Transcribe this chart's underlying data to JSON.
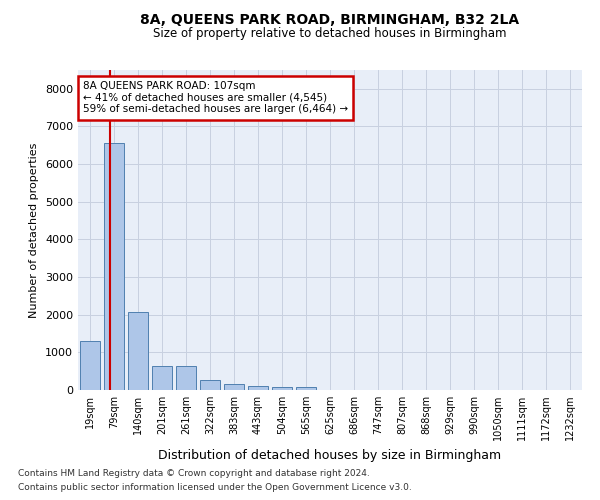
{
  "title": "8A, QUEENS PARK ROAD, BIRMINGHAM, B32 2LA",
  "subtitle": "Size of property relative to detached houses in Birmingham",
  "xlabel": "Distribution of detached houses by size in Birmingham",
  "ylabel": "Number of detached properties",
  "footnote1": "Contains HM Land Registry data © Crown copyright and database right 2024.",
  "footnote2": "Contains public sector information licensed under the Open Government Licence v3.0.",
  "bar_color": "#aec6e8",
  "bar_edge_color": "#5080b0",
  "grid_color": "#c8d0e0",
  "bg_color": "#e8eef8",
  "annotation_box_color": "#cc0000",
  "property_line_color": "#cc0000",
  "categories": [
    "19sqm",
    "79sqm",
    "140sqm",
    "201sqm",
    "261sqm",
    "322sqm",
    "383sqm",
    "443sqm",
    "504sqm",
    "565sqm",
    "625sqm",
    "686sqm",
    "747sqm",
    "807sqm",
    "868sqm",
    "929sqm",
    "990sqm",
    "1050sqm",
    "1111sqm",
    "1172sqm",
    "1232sqm"
  ],
  "values": [
    1300,
    6550,
    2080,
    650,
    640,
    255,
    150,
    110,
    80,
    75,
    0,
    0,
    0,
    0,
    0,
    0,
    0,
    0,
    0,
    0,
    0
  ],
  "ylim": [
    0,
    8500
  ],
  "yticks": [
    0,
    1000,
    2000,
    3000,
    4000,
    5000,
    6000,
    7000,
    8000
  ],
  "property_bin_index": 1,
  "annotation_text": "8A QUEENS PARK ROAD: 107sqm\n← 41% of detached houses are smaller (4,545)\n59% of semi-detached houses are larger (6,464) →"
}
